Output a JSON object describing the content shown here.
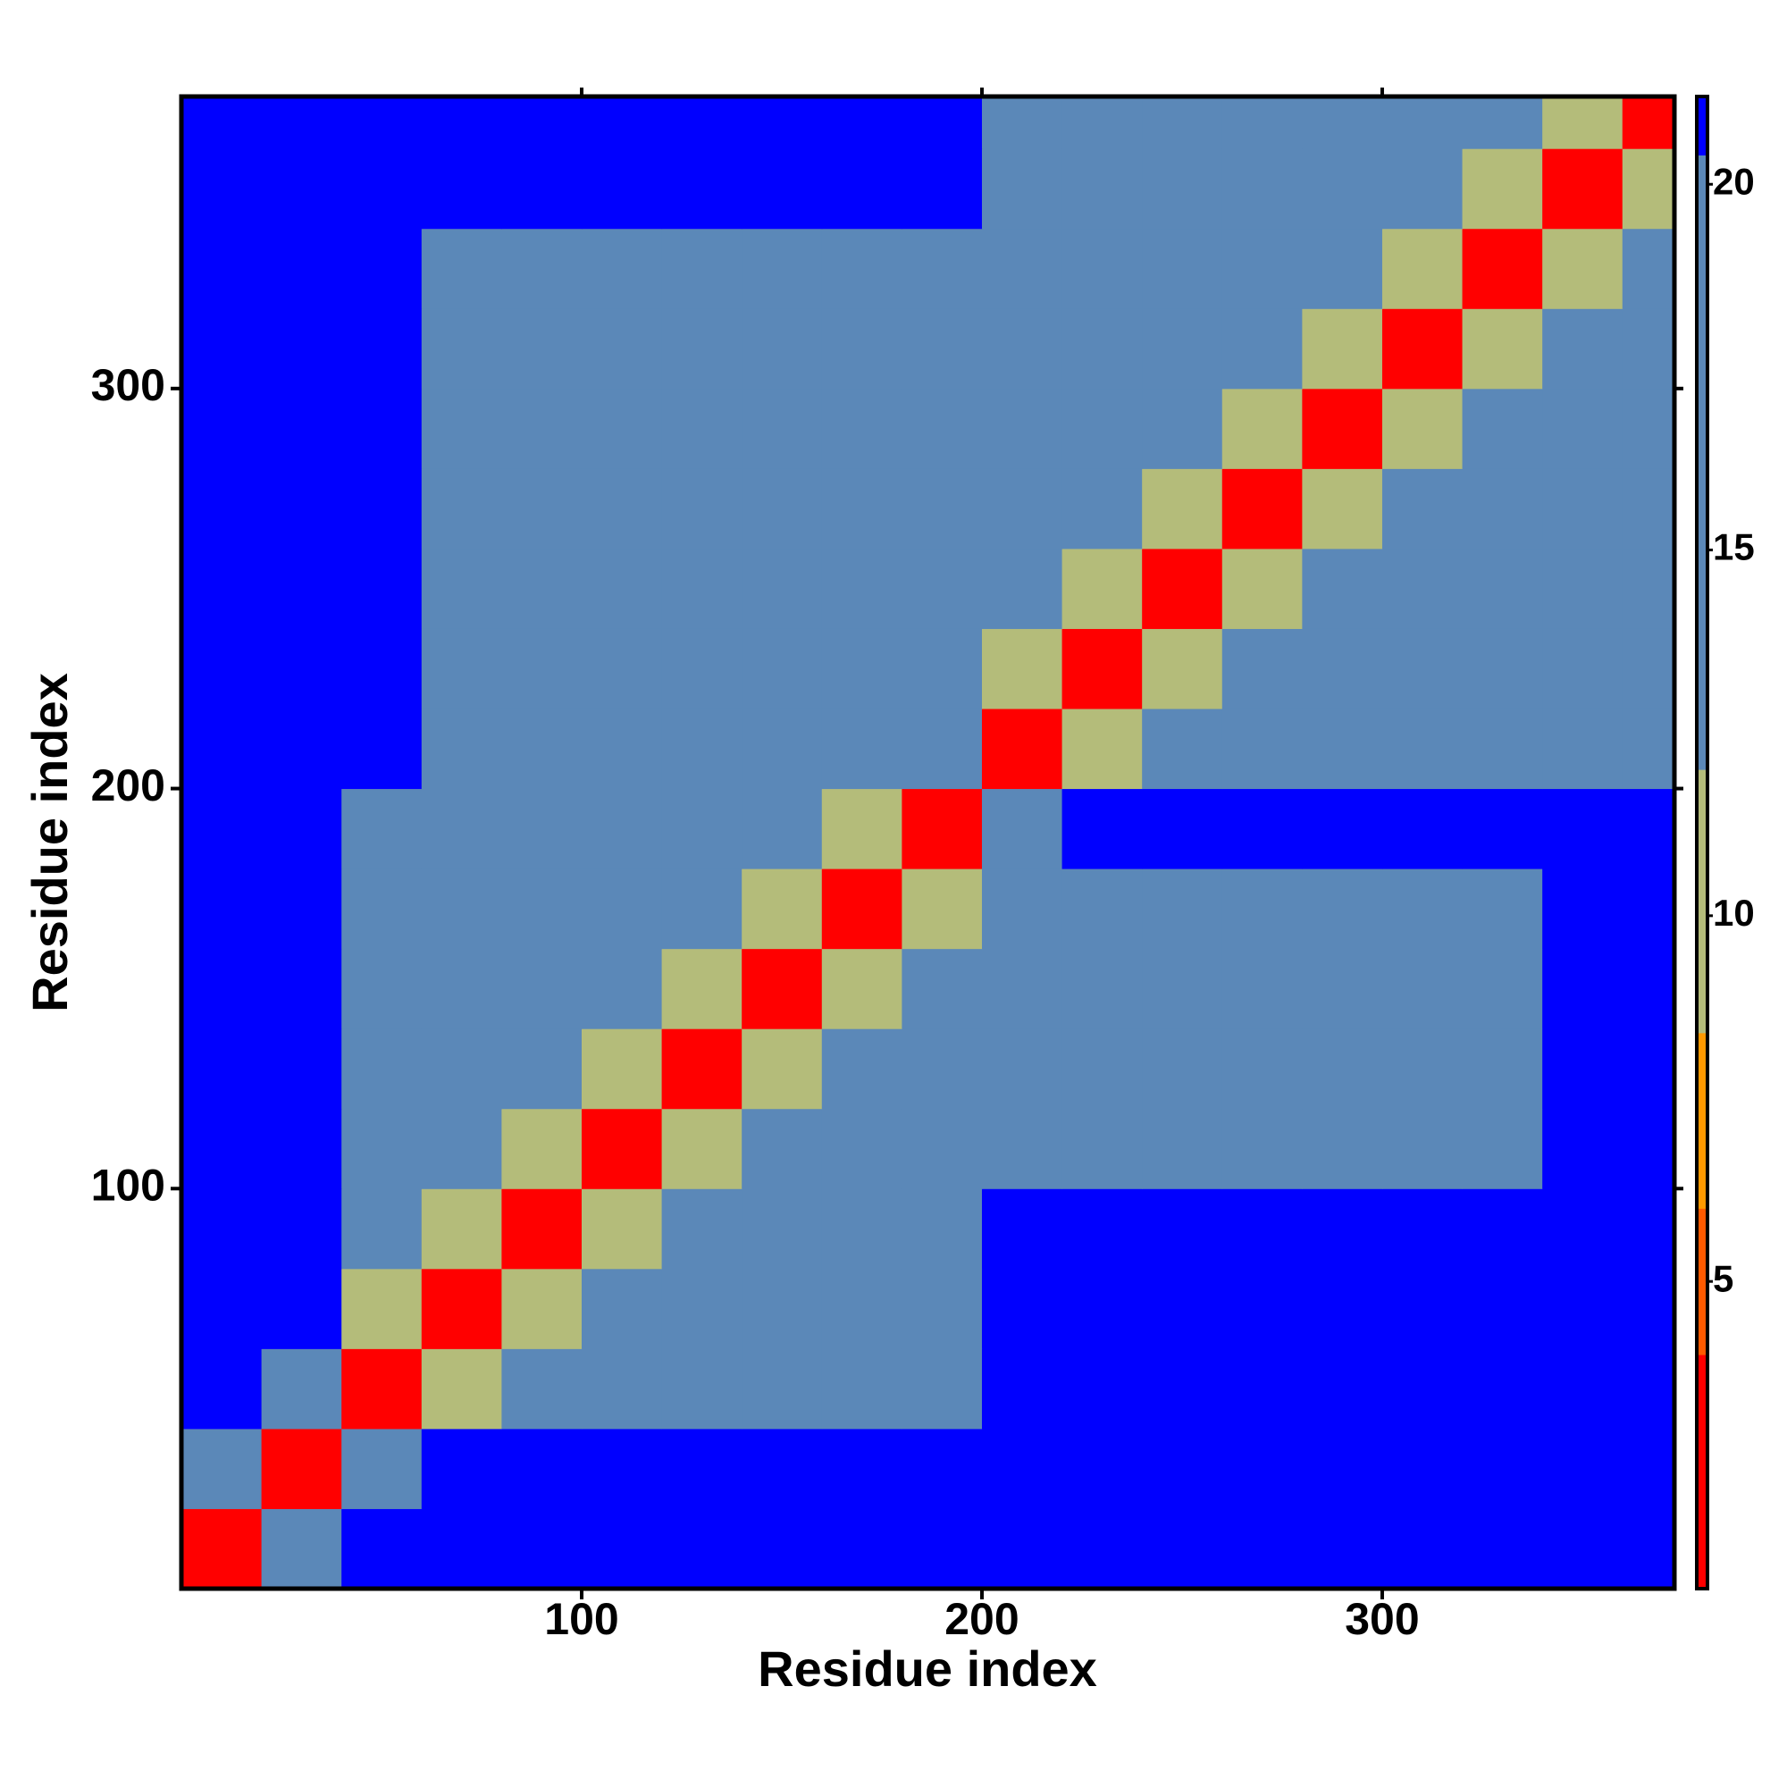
{
  "chart_data": {
    "type": "heatmap",
    "xlabel": "Residue index",
    "ylabel": "Residue index",
    "xlim": [
      0,
      373
    ],
    "ylim": [
      0,
      373
    ],
    "xticks": [
      100,
      200,
      300
    ],
    "yticks": [
      100,
      200,
      300
    ],
    "xbins": [
      0,
      20,
      40,
      60,
      80,
      100,
      120,
      140,
      160,
      180,
      200,
      220,
      240,
      260,
      280,
      300,
      320,
      340,
      360,
      373
    ],
    "ybins": [
      0,
      20,
      40,
      60,
      80,
      100,
      120,
      140,
      160,
      180,
      200,
      220,
      240,
      260,
      280,
      300,
      320,
      340,
      360,
      373
    ],
    "z": [
      [
        3,
        12,
        21,
        21,
        21,
        21,
        21,
        21,
        21,
        21,
        21,
        21,
        21,
        21,
        21,
        21,
        21,
        21,
        21
      ],
      [
        12,
        3,
        12,
        21,
        21,
        21,
        21,
        21,
        21,
        21,
        21,
        21,
        21,
        21,
        21,
        21,
        21,
        21,
        21
      ],
      [
        21,
        12,
        3,
        9,
        16,
        16,
        16,
        16,
        16,
        16,
        21,
        21,
        21,
        21,
        21,
        21,
        21,
        21,
        21
      ],
      [
        21,
        21,
        9,
        3,
        9,
        16,
        16,
        16,
        16,
        16,
        21,
        21,
        21,
        21,
        21,
        21,
        21,
        21,
        21
      ],
      [
        21,
        21,
        16,
        9,
        3,
        9,
        16,
        16,
        16,
        16,
        21,
        21,
        21,
        21,
        21,
        21,
        21,
        21,
        21
      ],
      [
        21,
        21,
        16,
        16,
        9,
        3,
        9,
        16,
        16,
        16,
        20,
        20,
        20,
        20,
        20,
        20,
        20,
        21,
        21
      ],
      [
        21,
        21,
        16,
        16,
        16,
        9,
        3,
        9,
        16,
        16,
        20,
        20,
        20,
        20,
        20,
        20,
        20,
        21,
        21
      ],
      [
        21,
        21,
        16,
        16,
        16,
        16,
        9,
        3,
        9,
        16,
        20,
        20,
        20,
        20,
        20,
        20,
        20,
        21,
        21
      ],
      [
        21,
        21,
        16,
        16,
        16,
        16,
        16,
        9,
        3,
        9,
        20,
        20,
        20,
        20,
        20,
        20,
        20,
        21,
        21
      ],
      [
        21,
        21,
        16,
        16,
        16,
        16,
        16,
        16,
        9,
        3,
        12,
        21,
        21,
        21,
        21,
        21,
        21,
        21,
        21
      ],
      [
        21,
        21,
        21,
        20,
        20,
        20,
        20,
        20,
        20,
        12,
        3,
        9,
        16,
        16,
        16,
        16,
        16,
        16,
        16
      ],
      [
        21,
        21,
        21,
        20,
        20,
        20,
        20,
        20,
        20,
        20,
        9,
        3,
        9,
        16,
        16,
        16,
        16,
        16,
        16
      ],
      [
        21,
        21,
        21,
        20,
        20,
        20,
        20,
        20,
        20,
        20,
        16,
        9,
        3,
        9,
        16,
        16,
        16,
        16,
        16
      ],
      [
        21,
        21,
        21,
        20,
        20,
        20,
        20,
        20,
        20,
        20,
        16,
        16,
        9,
        3,
        9,
        16,
        16,
        16,
        16
      ],
      [
        21,
        21,
        21,
        20,
        20,
        20,
        20,
        20,
        20,
        20,
        16,
        16,
        16,
        9,
        3,
        9,
        16,
        16,
        16
      ],
      [
        21,
        21,
        21,
        20,
        20,
        20,
        20,
        20,
        20,
        20,
        16,
        16,
        16,
        16,
        9,
        3,
        9,
        16,
        16
      ],
      [
        21,
        21,
        21,
        20,
        20,
        20,
        20,
        20,
        20,
        20,
        16,
        16,
        16,
        16,
        16,
        9,
        3,
        9,
        16
      ],
      [
        21,
        21,
        21,
        21,
        21,
        21,
        21,
        21,
        21,
        21,
        16,
        16,
        16,
        16,
        16,
        16,
        9,
        3,
        9
      ],
      [
        21,
        21,
        21,
        21,
        21,
        21,
        21,
        21,
        21,
        21,
        16,
        16,
        16,
        16,
        16,
        16,
        16,
        9,
        3
      ]
    ],
    "colorbar": {
      "lim": [
        0.8,
        21.2
      ],
      "ticks": [
        5,
        10,
        15,
        20
      ]
    },
    "colorscale": [
      {
        "from": 0.8,
        "color": "#ff0000"
      },
      {
        "from": 4,
        "color": "#ff5a00"
      },
      {
        "from": 6,
        "color": "#ff9900"
      },
      {
        "from": 8.4,
        "color": "#b4bc7a"
      },
      {
        "from": 12,
        "color": "#5b88b8"
      },
      {
        "from": 20.4,
        "color": "#0000ff"
      }
    ]
  }
}
